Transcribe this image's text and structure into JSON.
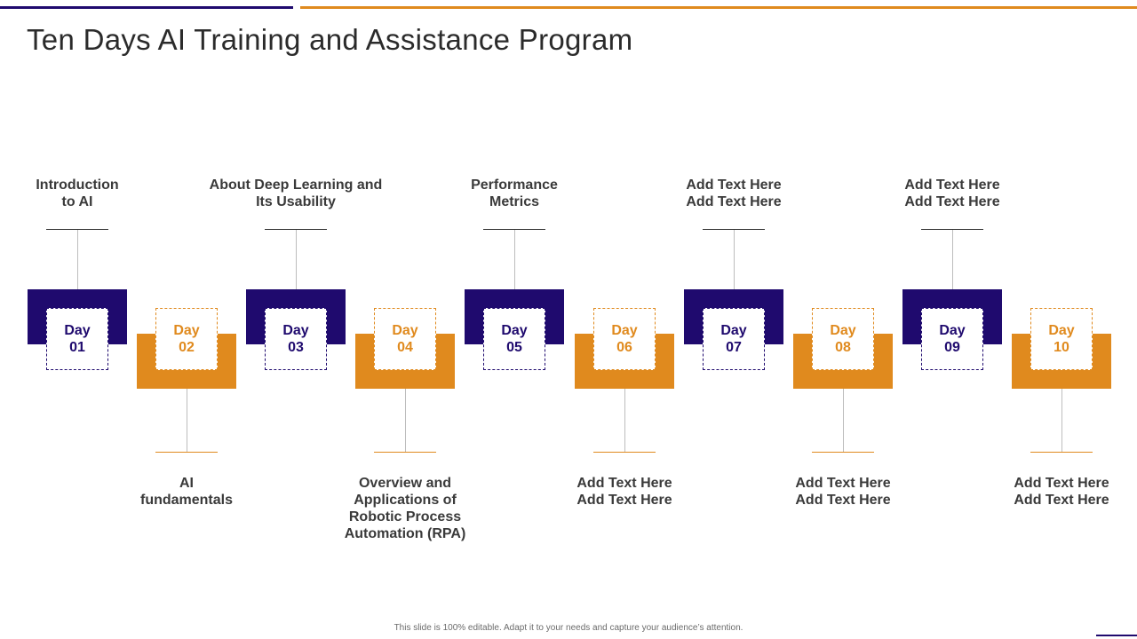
{
  "slide": {
    "title": "Ten Days AI Training and Assistance Program",
    "footer": "This slide is 100% editable. Adapt it to your needs and capture your audience’s attention."
  },
  "colors": {
    "purple": "#1f0a6e",
    "orange": "#e08a1e"
  },
  "days": [
    {
      "day": "Day",
      "num": "01",
      "label": "Introduction\nto AI",
      "color": "purple",
      "position": "top"
    },
    {
      "day": "Day",
      "num": "02",
      "label": "AI\nfundamentals",
      "color": "orange",
      "position": "bottom"
    },
    {
      "day": "Day",
      "num": "03",
      "label": "About Deep Learning and\nIts Usability",
      "color": "purple",
      "position": "top"
    },
    {
      "day": "Day",
      "num": "04",
      "label": "Overview and\nApplications of\nRobotic Process\nAutomation (RPA)",
      "color": "orange",
      "position": "bottom"
    },
    {
      "day": "Day",
      "num": "05",
      "label": "Performance\nMetrics",
      "color": "purple",
      "position": "top"
    },
    {
      "day": "Day",
      "num": "06",
      "label": "Add Text Here\nAdd Text Here",
      "color": "orange",
      "position": "bottom"
    },
    {
      "day": "Day",
      "num": "07",
      "label": "Add Text Here\nAdd Text Here",
      "color": "purple",
      "position": "top"
    },
    {
      "day": "Day",
      "num": "08",
      "label": "Add Text Here\nAdd Text Here",
      "color": "orange",
      "position": "bottom"
    },
    {
      "day": "Day",
      "num": "09",
      "label": "Add Text Here\nAdd Text Here",
      "color": "purple",
      "position": "top"
    },
    {
      "day": "Day",
      "num": "10",
      "label": "Add Text Here\nAdd Text Here",
      "color": "orange",
      "position": "bottom"
    }
  ]
}
